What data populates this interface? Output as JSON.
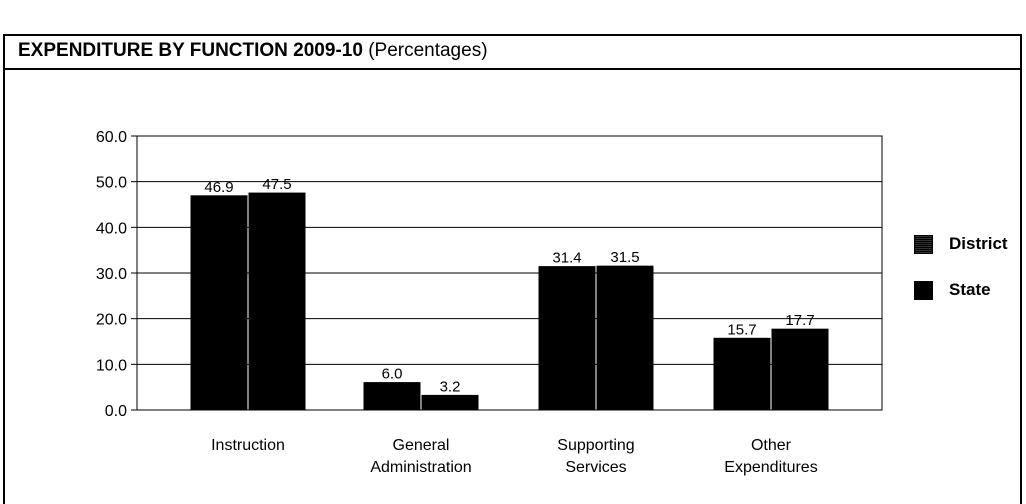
{
  "header": {
    "title_bold": "EXPENDITURE BY FUNCTION 2009-10",
    "title_rest": "(Percentages)"
  },
  "chart_data": {
    "type": "bar",
    "title": "EXPENDITURE BY FUNCTION 2009-10 (Percentages)",
    "categories": [
      "Instruction",
      "General Administration",
      "Supporting Services",
      "Other Expenditures"
    ],
    "category_lines": [
      [
        "Instruction"
      ],
      [
        "General",
        "Administration"
      ],
      [
        "Supporting",
        "Services"
      ],
      [
        "Other",
        "Expenditures"
      ]
    ],
    "series": [
      {
        "name": "District",
        "values": [
          46.9,
          6.0,
          31.4,
          15.7
        ],
        "labels": [
          "46.9",
          "6.0",
          "31.4",
          "15.7"
        ],
        "color": "#000000"
      },
      {
        "name": "State",
        "values": [
          47.5,
          3.2,
          31.5,
          17.7
        ],
        "labels": [
          "47.5",
          "3.2",
          "31.5",
          "17.7"
        ],
        "color": "#000000"
      }
    ],
    "ylim": [
      0,
      60
    ],
    "yticks": [
      "0.0",
      "10.0",
      "20.0",
      "30.0",
      "40.0",
      "50.0",
      "60.0"
    ],
    "grid": true,
    "legend": "right"
  }
}
